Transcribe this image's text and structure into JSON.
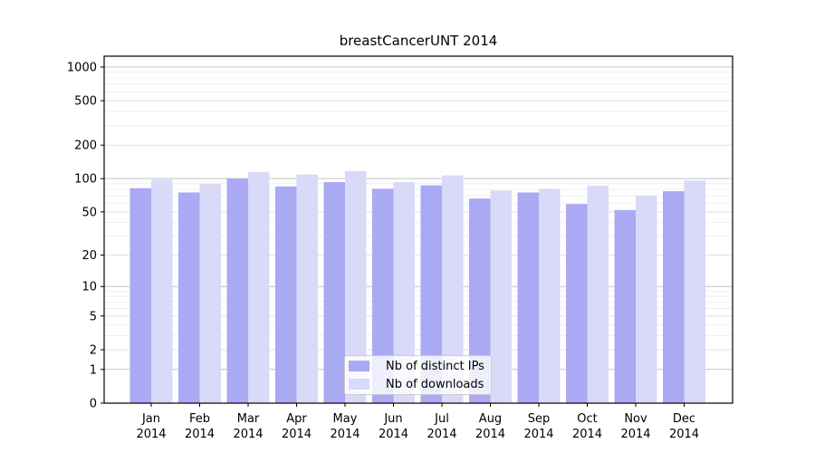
{
  "chart_data": {
    "type": "bar",
    "title": "breastCancerUNT 2014",
    "xlabel": "",
    "ylabel": "",
    "yscale": "log1p",
    "ylim": [
      0,
      1250
    ],
    "grid": true,
    "legend_position": "lower center",
    "y_ticks": [
      0,
      1,
      2,
      5,
      10,
      20,
      50,
      100,
      200,
      500,
      1000
    ],
    "categories": [
      "Jan",
      "Feb",
      "Mar",
      "Apr",
      "May",
      "Jun",
      "Jul",
      "Aug",
      "Sep",
      "Oct",
      "Nov",
      "Dec"
    ],
    "x_tick_year": "2014",
    "series": [
      {
        "name": "Nb of distinct IPs",
        "color": "#a9a9f4",
        "values": [
          82,
          75,
          100,
          85,
          93,
          81,
          87,
          66,
          75,
          59,
          52,
          77
        ]
      },
      {
        "name": "Nb of downloads",
        "color": "#d9d9f8",
        "values": [
          98,
          90,
          115,
          109,
          117,
          93,
          107,
          78,
          81,
          86,
          70,
          96
        ]
      }
    ]
  }
}
